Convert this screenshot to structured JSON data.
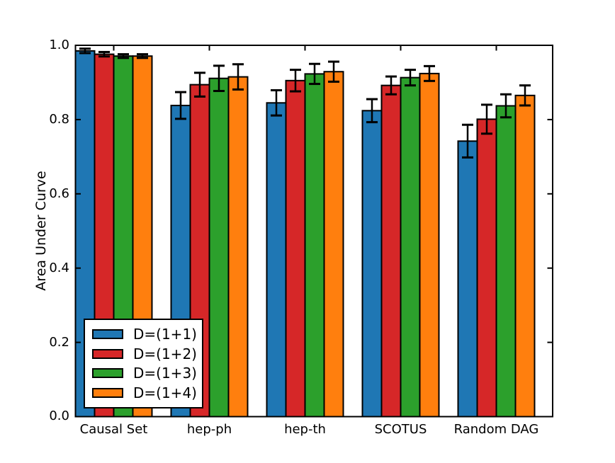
{
  "figure": {
    "background_color": "#ffffff",
    "axis_color": "#000000"
  },
  "chart_data": {
    "type": "bar",
    "title": "",
    "xlabel": "",
    "ylabel": "Area Under Curve",
    "ylim": [
      0.0,
      1.0
    ],
    "yticks": [
      0.0,
      0.2,
      0.4,
      0.6,
      0.8,
      1.0
    ],
    "ytick_labels_top_to_bottom": [
      "1.0",
      "0.8",
      "0.6",
      "0.4",
      "0.2",
      "0.0"
    ],
    "grid": false,
    "legend_position": "lower left",
    "error_bars": true,
    "categories": [
      "Causal Set",
      "hep-ph",
      "hep-th",
      "SCOTUS",
      "Random DAG"
    ],
    "series": [
      {
        "name": "D=(1+1)",
        "color": "#1f77b4",
        "values": [
          0.985,
          0.838,
          0.845,
          0.824,
          0.742
        ],
        "errors": [
          0.006,
          0.036,
          0.034,
          0.031,
          0.044
        ]
      },
      {
        "name": "D=(1+2)",
        "color": "#d62728",
        "values": [
          0.976,
          0.894,
          0.905,
          0.892,
          0.801
        ],
        "errors": [
          0.006,
          0.032,
          0.029,
          0.024,
          0.039
        ]
      },
      {
        "name": "D=(1+3)",
        "color": "#2ca02c",
        "values": [
          0.971,
          0.911,
          0.923,
          0.913,
          0.837
        ],
        "errors": [
          0.005,
          0.034,
          0.027,
          0.021,
          0.031
        ]
      },
      {
        "name": "D=(1+4)",
        "color": "#ff7f0e",
        "values": [
          0.971,
          0.915,
          0.929,
          0.924,
          0.865
        ],
        "errors": [
          0.005,
          0.034,
          0.027,
          0.02,
          0.027
        ]
      }
    ]
  }
}
